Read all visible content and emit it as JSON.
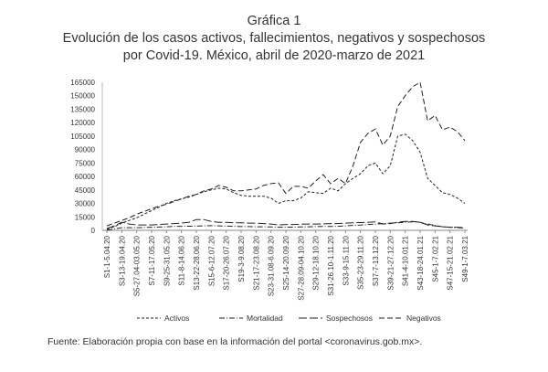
{
  "figure": {
    "label": "Gráfica 1",
    "title_line1": "Evolución de los casos activos, fallecimientos, negativos y sospechosos",
    "title_line2": "por Covid-19. México, abril de 2020-marzo de 2021",
    "source": "Fuente: Elaboración propia con base en la información del portal <coronavirus.gob.mx>."
  },
  "chart_data": {
    "type": "line",
    "title": "Evolución de los casos activos, fallecimientos, negativos y sospechosos por Covid-19. México, abril de 2020-marzo de 2021",
    "xlabel": "",
    "ylabel": "",
    "ylim": [
      0,
      165000
    ],
    "yticks": [
      0,
      15000,
      30000,
      45000,
      60000,
      75000,
      90000,
      105000,
      120000,
      135000,
      150000,
      165000
    ],
    "ytick_labels": [
      "0",
      "15000",
      "30000",
      "45000",
      "60000",
      "75000",
      "90000",
      "105000",
      "120000",
      "135000",
      "150000",
      "165000"
    ],
    "grid": false,
    "legend_position": "bottom",
    "n_points": 49,
    "x_tick_labels": [
      {
        "index": 0,
        "label": "S1-1-5.04.20"
      },
      {
        "index": 2,
        "label": "S3-13-19.04.20"
      },
      {
        "index": 4,
        "label": "S5-27.04-03.05.20"
      },
      {
        "index": 6,
        "label": "S7-11-17.05.20"
      },
      {
        "index": 8,
        "label": "S9-25-31.05.20"
      },
      {
        "index": 10,
        "label": "S11-8-14.06.20"
      },
      {
        "index": 12,
        "label": "S13-22-28.06.20"
      },
      {
        "index": 14,
        "label": "S15-6-12.07.20"
      },
      {
        "index": 16,
        "label": "S17-20-26.07.20"
      },
      {
        "index": 18,
        "label": "S19-3-9.08.20"
      },
      {
        "index": 20,
        "label": "S21-17-23.08.20"
      },
      {
        "index": 22,
        "label": "S23-31.08-6.09.20"
      },
      {
        "index": 24,
        "label": "S25-14-20.09.20"
      },
      {
        "index": 26,
        "label": "S27-28.09-04.10.20"
      },
      {
        "index": 28,
        "label": "S29-12-18.10.20"
      },
      {
        "index": 30,
        "label": "S31-26.10-1.11.20"
      },
      {
        "index": 32,
        "label": "S33-9-15.11.20"
      },
      {
        "index": 34,
        "label": "S35-23-29.11.20"
      },
      {
        "index": 36,
        "label": "S37-7-13.12.20"
      },
      {
        "index": 38,
        "label": "S39-21-27.12.20"
      },
      {
        "index": 40,
        "label": "S41-4-10.01.21"
      },
      {
        "index": 42,
        "label": "S43-18-24.01.21"
      },
      {
        "index": 44,
        "label": "S45-1-7.02.21"
      },
      {
        "index": 46,
        "label": "S47-15-21.02.21"
      },
      {
        "index": 48,
        "label": "S49-1-7.03.21"
      }
    ],
    "series": [
      {
        "name": "Activos",
        "dash": "3,2",
        "values": [
          1000,
          4000,
          8000,
          11000,
          14000,
          18000,
          22000,
          26000,
          30000,
          33000,
          35000,
          37000,
          40000,
          43000,
          45000,
          47000,
          46000,
          42000,
          39000,
          38000,
          38000,
          38000,
          36000,
          30000,
          33000,
          33000,
          36000,
          43000,
          42000,
          41000,
          47000,
          44000,
          52000,
          58000,
          63000,
          72000,
          75000,
          63000,
          72000,
          105000,
          107000,
          100000,
          87000,
          58000,
          50000,
          42000,
          40000,
          36000,
          30000
        ]
      },
      {
        "name": "Mortalidad",
        "dash": "6,2,1,2",
        "values": [
          0,
          1500,
          3000,
          3000,
          3000,
          3200,
          3500,
          3700,
          4000,
          4500,
          4500,
          4600,
          4700,
          5000,
          5200,
          5000,
          4700,
          4500,
          4200,
          4200,
          4000,
          4000,
          3800,
          3500,
          3600,
          3600,
          3800,
          4000,
          4200,
          4300,
          4300,
          4500,
          5000,
          5500,
          5800,
          6500,
          7000,
          7500,
          8000,
          8500,
          9000,
          9500,
          9000,
          7000,
          5500,
          4000,
          3500,
          3000,
          2500
        ]
      },
      {
        "name": "Sospechosos",
        "dash": "9,3",
        "values": [
          2000,
          5000,
          9000,
          7000,
          6000,
          6000,
          6000,
          6500,
          7000,
          7500,
          8000,
          9000,
          12000,
          12000,
          10000,
          9000,
          9000,
          8500,
          8500,
          8000,
          8000,
          7500,
          7000,
          6000,
          6500,
          6500,
          6800,
          7000,
          7000,
          7200,
          7500,
          7500,
          8000,
          8500,
          8700,
          9000,
          9500,
          7000,
          7500,
          9000,
          10000,
          10000,
          9000,
          6000,
          5000,
          4000,
          3500,
          3500,
          3000
        ]
      },
      {
        "name": "Negativos",
        "dash": "6,3",
        "values": [
          5000,
          8000,
          11000,
          14000,
          18000,
          21000,
          24000,
          27000,
          29000,
          32000,
          35000,
          38000,
          40000,
          44000,
          46000,
          50000,
          48000,
          44000,
          44000,
          45000,
          46000,
          50000,
          52000,
          53000,
          41000,
          49000,
          49000,
          47000,
          55000,
          62000,
          52000,
          58000,
          52000,
          72000,
          98000,
          108000,
          113000,
          95000,
          105000,
          138000,
          150000,
          160000,
          165000,
          122000,
          128000,
          112000,
          115000,
          110000,
          100000
        ]
      }
    ]
  }
}
